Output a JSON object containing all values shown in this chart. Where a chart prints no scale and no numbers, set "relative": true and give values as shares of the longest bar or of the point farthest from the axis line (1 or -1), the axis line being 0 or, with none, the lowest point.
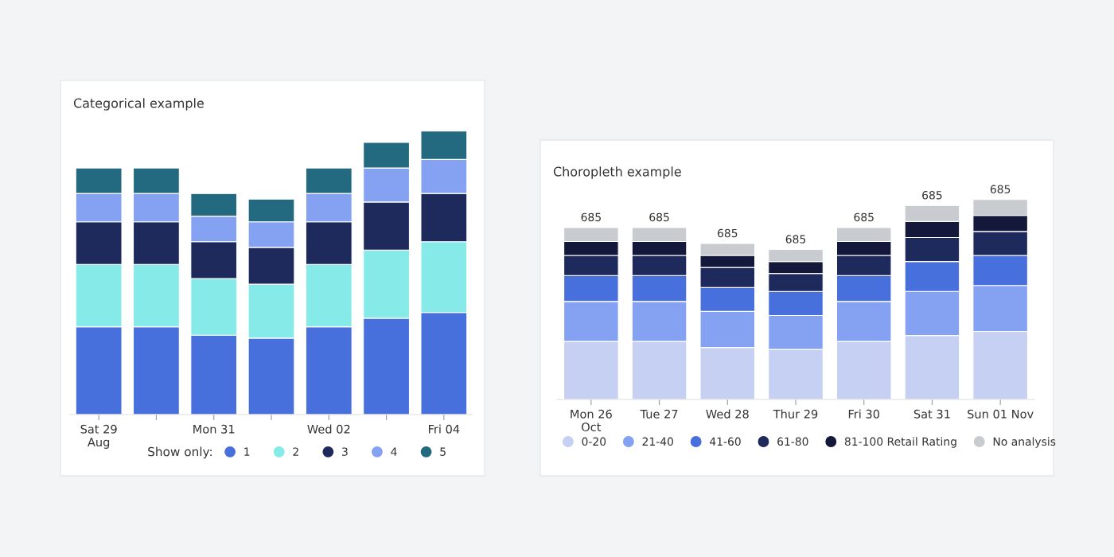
{
  "chart_data": [
    {
      "type": "bar",
      "title": "Categorical example",
      "stacked": true,
      "relative": true,
      "legend": "bottom",
      "legend_title": "Show only:",
      "categories": [
        "Sat 29\nAug",
        null,
        "Mon 31",
        null,
        "Wed 02",
        null,
        "Fri 04"
      ],
      "series": [
        {
          "name": "1",
          "color": "#4870dd",
          "values": [
            0.31,
            0.31,
            0.28,
            0.27,
            0.31,
            0.34,
            0.36
          ]
        },
        {
          "name": "2",
          "color": "#86ebe8",
          "values": [
            0.22,
            0.22,
            0.2,
            0.19,
            0.22,
            0.24,
            0.25
          ]
        },
        {
          "name": "3",
          "color": "#1f2a5c",
          "values": [
            0.15,
            0.15,
            0.13,
            0.13,
            0.15,
            0.17,
            0.17
          ]
        },
        {
          "name": "4",
          "color": "#84a1f2",
          "values": [
            0.1,
            0.1,
            0.09,
            0.09,
            0.1,
            0.12,
            0.12
          ]
        },
        {
          "name": "5",
          "color": "#236a80",
          "values": [
            0.09,
            0.09,
            0.08,
            0.08,
            0.09,
            0.09,
            0.1
          ]
        }
      ]
    },
    {
      "type": "bar",
      "title": "Choropleth example",
      "stacked": true,
      "relative": true,
      "legend": "bottom",
      "categories": [
        "Mon 26\nOct",
        "Tue 27",
        "Wed 28",
        "Thur 29",
        "Fri 30",
        "Sat 31",
        "Sun 01 Nov"
      ],
      "annotations": [
        {
          "text": "685",
          "x": "Mon 26\nOct",
          "y": 0.86
        },
        {
          "text": "685",
          "x": "Tue 27",
          "y": 0.86
        },
        {
          "text": "685",
          "x": "Wed 28",
          "y": 0.78
        },
        {
          "text": "685",
          "x": "Thur 29",
          "y": 0.75
        },
        {
          "text": "685",
          "x": "Fri 30",
          "y": 0.86
        },
        {
          "text": "685",
          "x": "Sat 31",
          "y": 0.97
        },
        {
          "text": "685",
          "x": "Sun 01 Nov",
          "y": 1.0
        }
      ],
      "series": [
        {
          "name": "0-20",
          "color": "#c5d0f2",
          "values": [
            0.29,
            0.29,
            0.26,
            0.25,
            0.29,
            0.32,
            0.34
          ]
        },
        {
          "name": "21-40",
          "color": "#84a1f2",
          "values": [
            0.2,
            0.2,
            0.18,
            0.17,
            0.2,
            0.22,
            0.23
          ]
        },
        {
          "name": "41-60",
          "color": "#4870dd",
          "values": [
            0.13,
            0.13,
            0.12,
            0.12,
            0.13,
            0.15,
            0.15
          ]
        },
        {
          "name": "61-80",
          "color": "#1f2a5c",
          "values": [
            0.1,
            0.1,
            0.1,
            0.09,
            0.1,
            0.12,
            0.12
          ]
        },
        {
          "name": "81-100 Retail Rating",
          "color": "#14183a",
          "values": [
            0.07,
            0.07,
            0.06,
            0.06,
            0.07,
            0.08,
            0.08
          ]
        },
        {
          "name": "No analysis",
          "color": "#c8cbd0",
          "values": [
            0.07,
            0.07,
            0.06,
            0.06,
            0.07,
            0.08,
            0.08
          ]
        }
      ]
    }
  ]
}
